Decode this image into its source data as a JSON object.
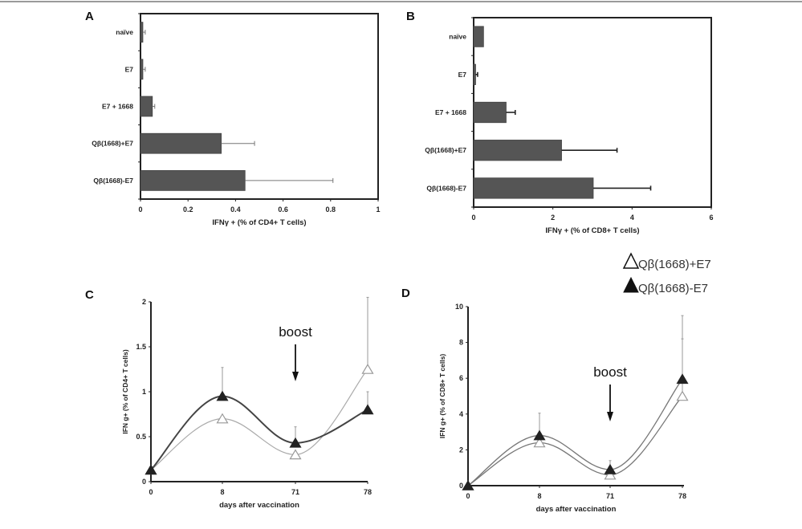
{
  "figure": {
    "panels": [
      "A",
      "B",
      "C",
      "D"
    ],
    "legend": [
      {
        "label": "Qβ(1668)+E7",
        "marker": "open-triangle"
      },
      {
        "label": "Qβ(1668)-E7",
        "marker": "filled-triangle"
      }
    ],
    "colors": {
      "bar_fill": "#555555",
      "bar_stroke": "#444444",
      "open_series": "#aaaaaa",
      "filled_series": "#444444",
      "axis": "#222222"
    }
  },
  "chart_data": [
    {
      "panel": "A",
      "type": "bar",
      "orientation": "horizontal",
      "categories": [
        "naïve",
        "E7",
        "E7 + 1668",
        "Qβ(1668)+E7",
        "Qβ(1668)-E7"
      ],
      "values": [
        0.01,
        0.01,
        0.05,
        0.34,
        0.44
      ],
      "error_plus": [
        0.01,
        0.01,
        0.01,
        0.14,
        0.37
      ],
      "title": "",
      "xlabel": "IFNγ + (% of CD4+ T cells)",
      "ylabel": "",
      "xlim": [
        0,
        1
      ],
      "xticks": [
        "0",
        "0.2",
        "0.4",
        "0.6",
        "0.8",
        "1"
      ],
      "xtick_values": [
        0,
        0.2,
        0.4,
        0.6,
        0.8,
        1
      ],
      "grid": false
    },
    {
      "panel": "B",
      "type": "bar",
      "orientation": "horizontal",
      "categories": [
        "naïve",
        "E7",
        "E7 + 1668",
        "Qβ(1668)+E7",
        "Qβ(1668)-E7"
      ],
      "values": [
        0.25,
        0.05,
        0.82,
        2.22,
        3.02
      ],
      "error_plus": [
        0,
        0.05,
        0.23,
        1.4,
        1.45
      ],
      "title": "",
      "xlabel": "IFNγ + (% of CD8+ T cells)",
      "ylabel": "",
      "xlim": [
        0,
        6
      ],
      "xticks": [
        "0",
        "2",
        "4",
        "6"
      ],
      "xtick_values": [
        0,
        2,
        4,
        6
      ],
      "grid": false
    },
    {
      "panel": "C",
      "type": "line",
      "x": [
        "0",
        "8",
        "71",
        "78"
      ],
      "series": [
        {
          "name": "Qβ(1668)+E7",
          "marker": "open-triangle",
          "values": [
            0.13,
            0.7,
            0.3,
            1.25
          ],
          "error_plus": [
            0,
            0,
            0,
            0.8
          ]
        },
        {
          "name": "Qβ(1668)-E7",
          "marker": "filled-triangle",
          "values": [
            0.13,
            0.95,
            0.43,
            0.8
          ],
          "error_plus": [
            0,
            0.32,
            0.18,
            0.2
          ]
        }
      ],
      "annotation": {
        "text": "boost",
        "at_x": "71"
      },
      "xlabel": "days after vaccination",
      "ylabel": "IFN g+ (% of CD4+ T cells)",
      "ylim": [
        0,
        2
      ],
      "yticks": [
        "0",
        "0.5",
        "1",
        "1.5",
        "2"
      ],
      "ytick_values": [
        0,
        0.5,
        1,
        1.5,
        2
      ],
      "grid": false
    },
    {
      "panel": "D",
      "type": "line",
      "x": [
        "0",
        "8",
        "71",
        "78"
      ],
      "series": [
        {
          "name": "Qβ(1668)+E7",
          "marker": "open-triangle",
          "values": [
            0,
            2.4,
            0.6,
            5.0
          ],
          "error_plus": [
            0,
            0,
            0,
            4.5
          ]
        },
        {
          "name": "Qβ(1668)-E7",
          "marker": "filled-triangle",
          "values": [
            0,
            2.8,
            0.9,
            5.95
          ],
          "error_plus": [
            0,
            1.25,
            0.5,
            2.25
          ]
        }
      ],
      "annotation": {
        "text": "boost",
        "at_x": "71"
      },
      "xlabel": "days after vaccination",
      "ylabel": "IFN g+ (% of CD8+ T cells)",
      "ylim": [
        0,
        10
      ],
      "yticks": [
        "0",
        "2",
        "4",
        "6",
        "8",
        "10"
      ],
      "ytick_values": [
        0,
        2,
        4,
        6,
        8,
        10
      ],
      "grid": false
    }
  ]
}
